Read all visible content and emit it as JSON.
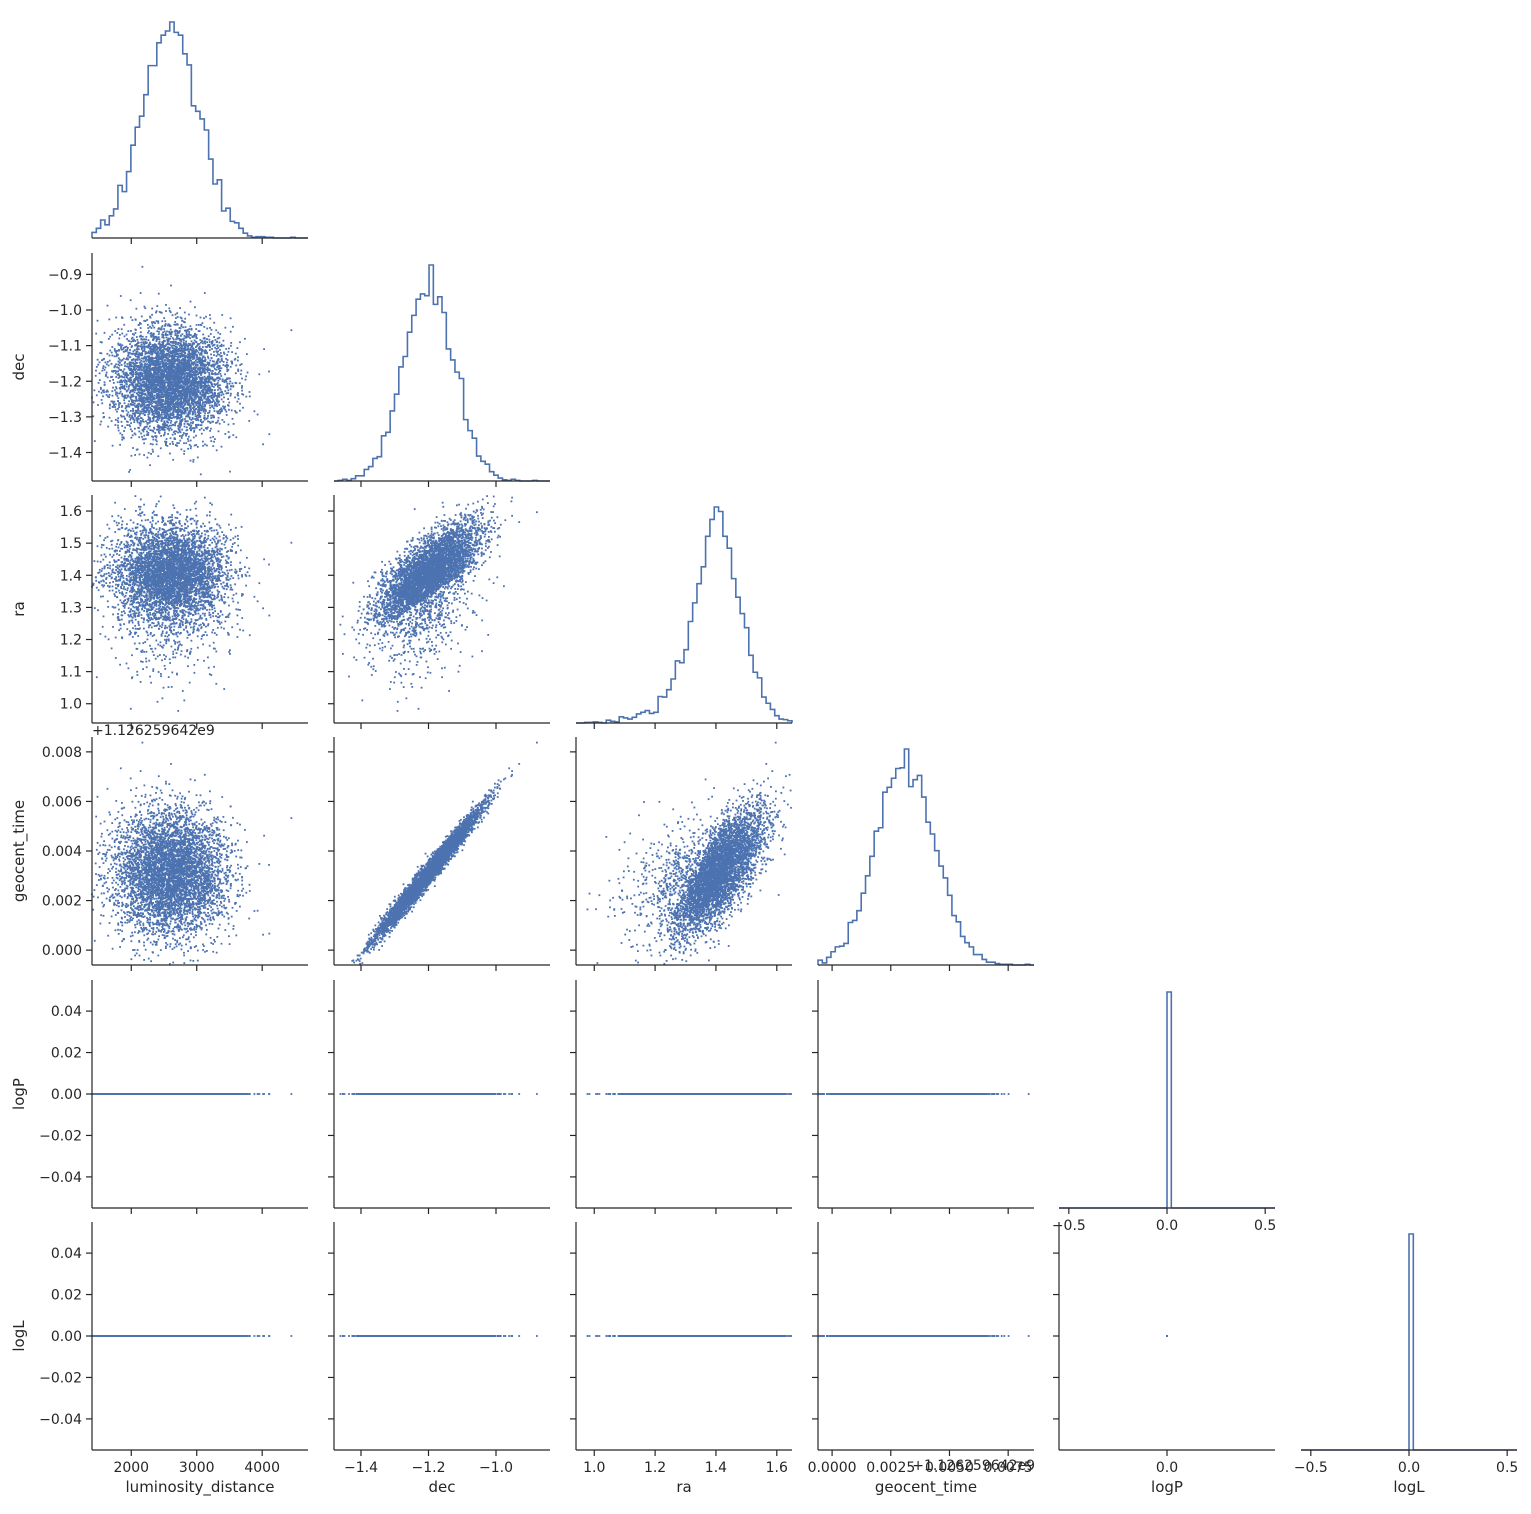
{
  "chart_data": {
    "type": "scatter",
    "layout": "corner",
    "colors": {
      "accent": "#4c72b0",
      "axis": "#262626"
    },
    "variables": [
      "luminosity_distance",
      "dec",
      "ra",
      "geocent_time",
      "logP",
      "logL"
    ],
    "axes": {
      "luminosity_distance": {
        "label": "luminosity_distance",
        "lim": [
          1400,
          4700
        ],
        "ticks": [
          2000,
          3000,
          4000
        ],
        "tick_labels": [
          "2000",
          "3000",
          "4000"
        ]
      },
      "dec": {
        "label": "dec",
        "lim": [
          -1.48,
          -0.84
        ],
        "ticks": [
          -1.4,
          -1.3,
          -1.2,
          -1.1,
          -1.0,
          -0.9
        ],
        "x_tick_labels": [
          "−1.4",
          "−1.2",
          "−1.0"
        ],
        "y_tick_labels": [
          "−1.4",
          "−1.3",
          "−1.2",
          "−1.1",
          "−1.0",
          "−0.9"
        ]
      },
      "ra": {
        "label": "ra",
        "lim": [
          0.94,
          1.65
        ],
        "ticks": [
          1.0,
          1.1,
          1.2,
          1.3,
          1.4,
          1.5,
          1.6
        ],
        "x_tick_labels": [
          "1.0",
          "1.2",
          "1.4",
          "1.6"
        ],
        "y_tick_labels": [
          "1.0",
          "1.1",
          "1.2",
          "1.3",
          "1.4",
          "1.5",
          "1.6"
        ]
      },
      "geocent_time": {
        "label": "geocent_time",
        "lim": [
          -0.0006,
          0.0086
        ],
        "ticks": [
          0.0,
          0.002,
          0.004,
          0.006,
          0.008
        ],
        "x_tick_labels": [
          "0.0000",
          "0.0025",
          "0.0050",
          "0.0075"
        ],
        "y_tick_labels": [
          "0.000",
          "0.002",
          "0.004",
          "0.006",
          "0.008"
        ],
        "offset_text": "+1.126259642e9"
      },
      "logP": {
        "label": "logP",
        "lim": [
          -0.055,
          0.055
        ],
        "ticks": [
          -0.5,
          0.0,
          0.5
        ],
        "x_tick_labels": [
          "−0.5",
          "0.0",
          "0.5"
        ],
        "y_tick_labels": [
          "−0.04",
          "−0.02",
          "0.00",
          "0.02",
          "0.04"
        ]
      },
      "logL": {
        "label": "logL",
        "lim": [
          -0.055,
          0.055
        ],
        "ticks": [
          -0.5,
          0.0,
          0.5
        ],
        "x_tick_labels": [
          "−0.5",
          "0.0",
          "0.5"
        ],
        "y_tick_labels": [
          "−0.04",
          "−0.02",
          "0.00",
          "0.02",
          "0.04"
        ]
      }
    },
    "distributions": {
      "luminosity_distance": {
        "mean": 2560,
        "sd": 430
      },
      "dec": {
        "mean": -1.2,
        "sd": 0.075
      },
      "ra": {
        "mean": 1.4,
        "sd": 0.075,
        "skew": "left"
      },
      "geocent_time": {
        "mean": 0.0031,
        "sd": 0.0013
      },
      "logP": {
        "value": 0.0
      },
      "logL": {
        "value": 0.0
      }
    },
    "n_samples": 5000,
    "grid": false,
    "legend": "none"
  }
}
